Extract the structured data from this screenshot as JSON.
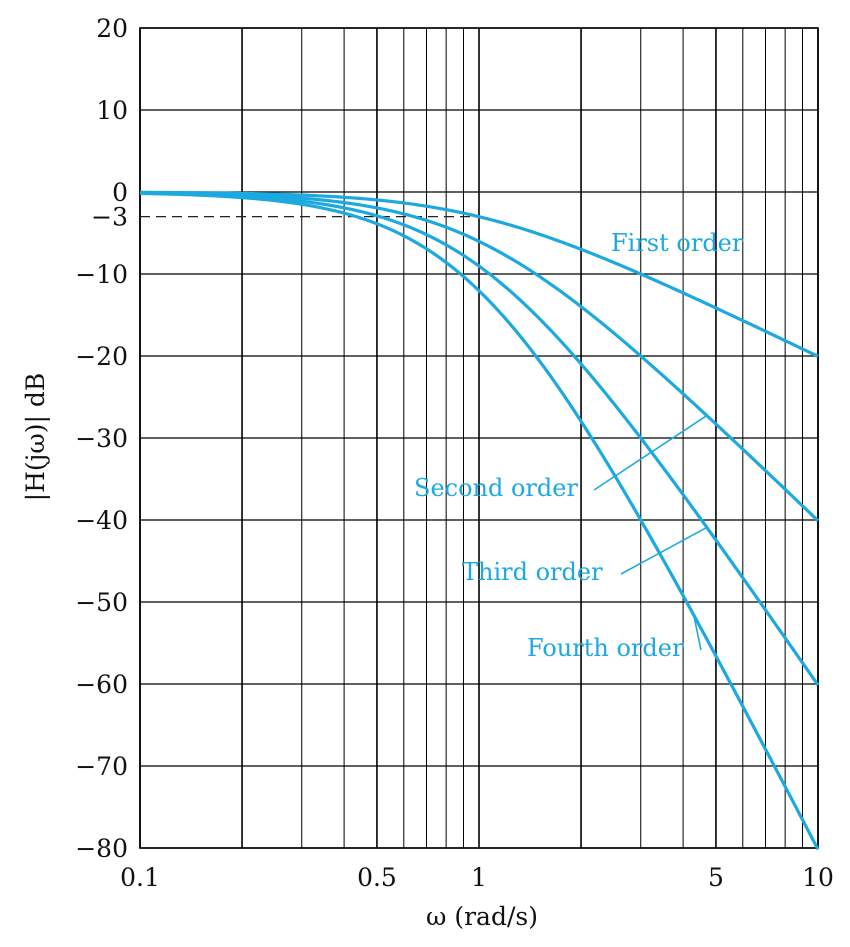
{
  "chart_data": {
    "type": "line",
    "title": "",
    "xlabel": "ω (rad/s)",
    "ylabel": "|H(jω)| dB",
    "x_scale": "log",
    "xlim": [
      0.1,
      10
    ],
    "ylim": [
      -80,
      20
    ],
    "x_ticks": [
      0.1,
      0.5,
      1,
      5,
      10
    ],
    "x_tick_labels": [
      "0.1",
      "0.5",
      "1",
      "5",
      "10"
    ],
    "y_ticks": [
      20,
      10,
      0,
      -3,
      -10,
      -20,
      -30,
      -40,
      -50,
      -60,
      -70,
      -80
    ],
    "y_tick_labels": [
      "20",
      "10",
      "0",
      "−3",
      "−10",
      "−20",
      "−30",
      "−40",
      "−50",
      "−60",
      "−70",
      "−80"
    ],
    "grid": true,
    "reference_line": {
      "y": -3,
      "style": "dashed",
      "x_end": 1
    },
    "curve_color": "#1ba9e0",
    "series": [
      {
        "name": "First order",
        "order": 1,
        "x": [
          0.1,
          0.2,
          0.5,
          1,
          2,
          5,
          10
        ],
        "y": [
          -0.04,
          -0.17,
          -0.97,
          -3.01,
          -6.99,
          -14.15,
          -20.04
        ]
      },
      {
        "name": "Second order",
        "order": 2,
        "x": [
          0.1,
          0.2,
          0.5,
          1,
          2,
          5,
          10
        ],
        "y": [
          -0.09,
          -0.34,
          -1.94,
          -6.02,
          -13.98,
          -28.3,
          -40.09
        ]
      },
      {
        "name": "Third order",
        "order": 3,
        "x": [
          0.1,
          0.2,
          0.5,
          1,
          2,
          5,
          10
        ],
        "y": [
          -0.13,
          -0.51,
          -2.91,
          -9.03,
          -20.97,
          -42.45,
          -60.13
        ]
      },
      {
        "name": "Fourth order",
        "order": 4,
        "x": [
          0.1,
          0.2,
          0.5,
          1,
          2,
          5,
          10
        ],
        "y": [
          -0.17,
          -0.68,
          -3.88,
          -12.04,
          -27.96,
          -56.6,
          -80.17
        ]
      }
    ]
  }
}
